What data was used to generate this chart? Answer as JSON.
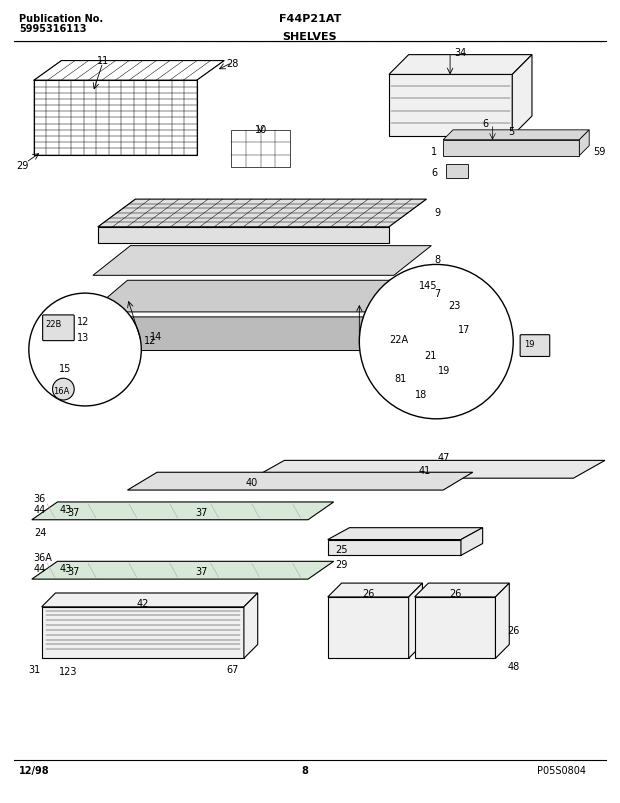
{
  "title_left_line1": "Publication No.",
  "title_left_line2": "5995316113",
  "title_center": "F44P21AT",
  "title_section": "SHELVES",
  "footer_left": "12/98",
  "footer_center": "8",
  "footer_right": "P05S0804",
  "bg_color": "#ffffff",
  "line_color": "#000000",
  "text_color": "#000000",
  "fig_width": 6.2,
  "fig_height": 8.04,
  "dpi": 100
}
